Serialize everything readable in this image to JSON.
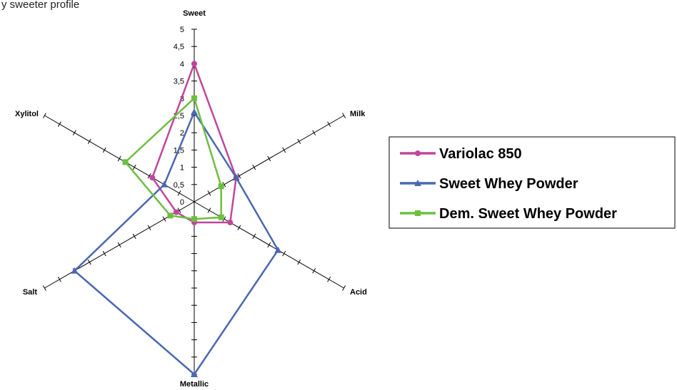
{
  "caption": "y sweeter profile",
  "chart_data": {
    "type": "radar",
    "axes": [
      "Sweet",
      "Milk",
      "Acid",
      "Metallic",
      "Salt",
      "Xylitol"
    ],
    "ticks": [
      "0",
      "0,5",
      "1",
      "1,5",
      "2",
      "2,5",
      "3",
      "3,5",
      "4",
      "4,5",
      "5"
    ],
    "rlim": [
      0,
      5
    ],
    "legend_position": "right",
    "series": [
      {
        "name": "Variolac 850",
        "color": "#C0469C",
        "marker": "circle",
        "values": [
          4,
          1.4,
          1.2,
          0.6,
          0.6,
          1.4
        ]
      },
      {
        "name": "Sweet Whey Powder",
        "color": "#4A67B1",
        "marker": "triangle",
        "values": [
          2.6,
          1.4,
          2.8,
          5,
          4,
          1
        ]
      },
      {
        "name": "Dem. Sweet Whey Powder",
        "color": "#6CBF3F",
        "marker": "square",
        "values": [
          3,
          0.9,
          0.9,
          0.5,
          0.8,
          2.3
        ]
      }
    ]
  }
}
